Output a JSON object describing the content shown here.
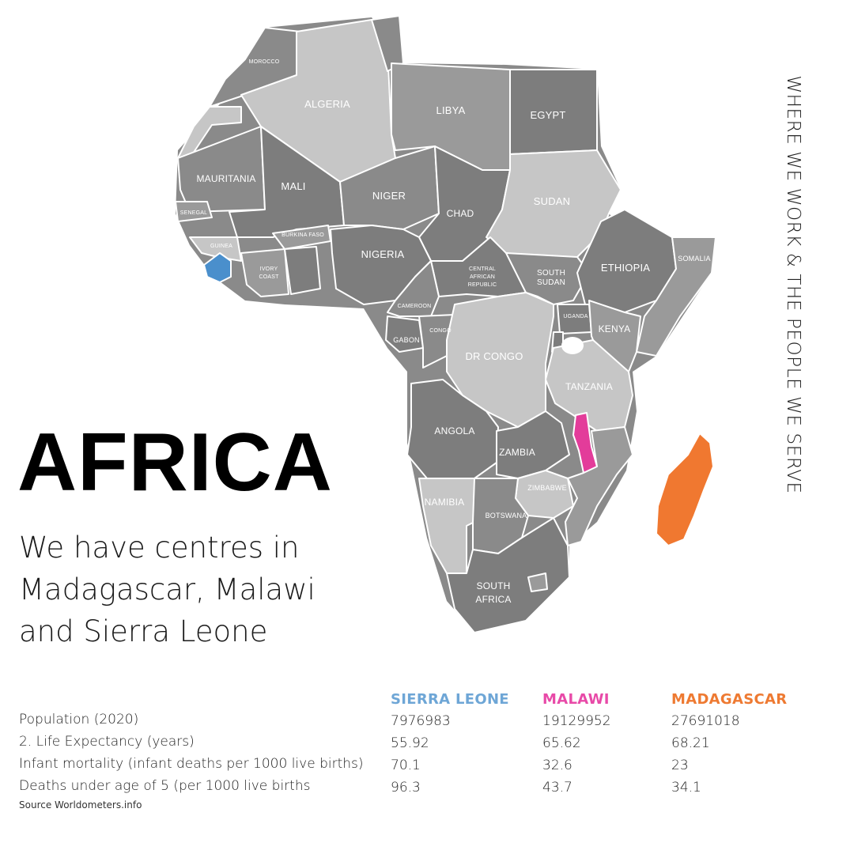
{
  "side_caption": "WHERE WE WORK & THE PEOPLE WE SERVE",
  "title": "AFRICA",
  "intro": {
    "line1": "We have centres in",
    "line2": "Madagascar, Malawi",
    "line3": "and Sierra Leone"
  },
  "colors": {
    "sierra_leone": "#4a8fcc",
    "malawi": "#e33c9a",
    "madagascar": "#f07830",
    "gray_dark": "#7d7d7d",
    "gray_mid": "#9a9a9a",
    "gray_light": "#c6c6c6"
  },
  "map": {
    "labels": {
      "morocco": "MOROCCO",
      "algeria": "ALGERIA",
      "libya": "LIBYA",
      "egypt": "EGYPT",
      "mauritania": "MAURITANIA",
      "mali": "MALI",
      "niger": "NIGER",
      "chad": "CHAD",
      "sudan": "SUDAN",
      "senegal": "SENEGAL",
      "burkina_faso": "BURKINA FASO",
      "guinea": "GUINEA",
      "ivory_coast_1": "IVORY",
      "ivory_coast_2": "COAST",
      "nigeria": "NIGERIA",
      "car_1": "CENTRAL",
      "car_2": "AFRICAN",
      "car_3": "REPUBLIC",
      "south_sudan_1": "SOUTH",
      "south_sudan_2": "SUDAN",
      "ethiopia": "ETHIOPIA",
      "somalia": "SOMALIA",
      "cameroon": "CAMEROON",
      "congo": "CONGO",
      "gabon": "GABON",
      "uganda": "UGANDA",
      "kenya": "KENYA",
      "dr_congo": "DR CONGO",
      "tanzania": "TANZANIA",
      "angola": "ANGOLA",
      "zambia": "ZAMBIA",
      "zimbabwe": "ZIMBABWE",
      "namibia": "NAMIBIA",
      "botswana": "BOTSWANA",
      "south_africa_1": "SOUTH",
      "south_africa_2": "AFRICA"
    }
  },
  "stats": {
    "columns": [
      {
        "name": "SIERRA LEONE",
        "color": "#6ea6d6"
      },
      {
        "name": "MALAWI",
        "color": "#e84aa8"
      },
      {
        "name": "MADAGASCAR",
        "color": "#ee7a32"
      }
    ],
    "rows": [
      {
        "label": "Population (2020)",
        "values": [
          "7976983",
          "19129952",
          "27691018"
        ]
      },
      {
        "label": "2. Life Expectancy (years)",
        "values": [
          "55.92",
          "65.62",
          "68.21"
        ]
      },
      {
        "label": "Infant mortality (infant deaths per 1000 live births)",
        "values": [
          "70.1",
          "32.6",
          "23"
        ]
      },
      {
        "label": "Deaths under age of 5 (per 1000 live births",
        "values": [
          "96.3",
          "43.7",
          "34.1"
        ]
      }
    ],
    "source": "Source Worldometers.info"
  }
}
